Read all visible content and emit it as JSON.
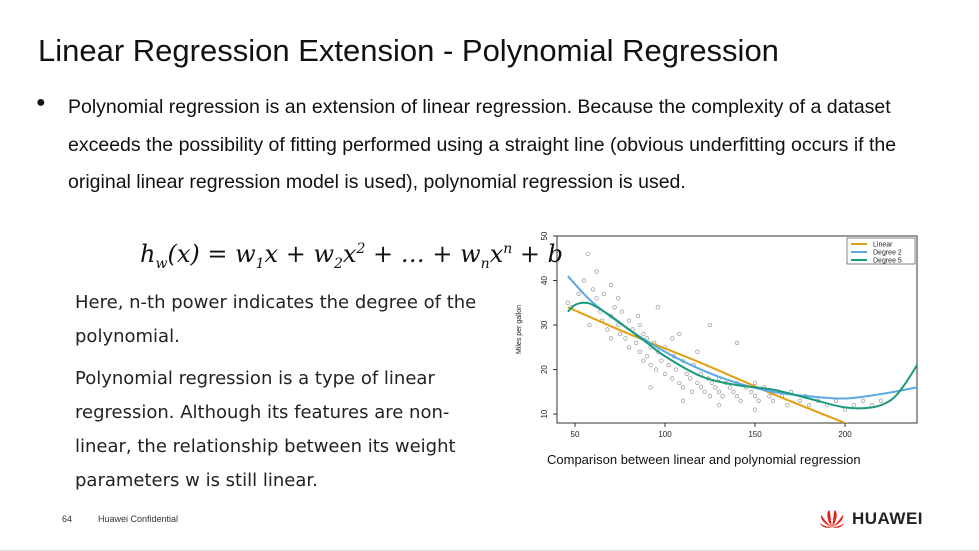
{
  "slide": {
    "title": "Linear Regression Extension - Polynomial Regression",
    "bullet": "Polynomial regression is an extension of linear regression. Because the complexity of a dataset exceeds the possibility of fitting performed using a straight line (obvious underfitting occurs if the original linear regression model is used), polynomial regression is used.",
    "formula": "h_w(x) = w_1 x + w_2 x^2 + ... + w_n x^n + b",
    "para1": "Here, n-th power indicates the degree of the polynomial.",
    "para2": "Polynomial regression is a type of linear regression. Although its features are non-linear, the relationship between its weight parameters w is still linear.",
    "caption": "Comparison between linear and polynomial regression",
    "footer_page": "64",
    "footer_confidential": "Huawei Confidential",
    "logo_text": "HUAWEI"
  },
  "colors": {
    "linear": "#e0a010",
    "degree2": "#5aa9e6",
    "degree5": "#1a9a7a",
    "points": "#888888",
    "logo_red": "#e2231a"
  },
  "chart_data": {
    "type": "scatter",
    "ylabel": "Miles per gallon",
    "xlabel": "",
    "xlim": [
      40,
      240
    ],
    "ylim": [
      8,
      50
    ],
    "x_ticks": [
      "50",
      "100",
      "150",
      "200"
    ],
    "y_ticks": [
      "10",
      "20",
      "30",
      "40",
      "50"
    ],
    "legend_position": "top-right",
    "series": [
      {
        "name": "Linear",
        "x": [
          46,
          80,
          120,
          160,
          200,
          230
        ],
        "y": [
          34,
          28,
          21.5,
          14.5,
          8,
          3
        ]
      },
      {
        "name": "Degree 2",
        "x": [
          46,
          60,
          80,
          100,
          120,
          140,
          160,
          180,
          200,
          220,
          240
        ],
        "y": [
          41,
          35,
          29,
          24,
          20,
          17,
          15,
          14,
          13.5,
          14.5,
          16
        ]
      },
      {
        "name": "Degree 5",
        "x": [
          46,
          50,
          55,
          60,
          70,
          80,
          90,
          100,
          120,
          140,
          160,
          180,
          200,
          215,
          225,
          232,
          240
        ],
        "y": [
          33,
          34.5,
          35,
          34.5,
          32,
          29,
          26,
          23,
          18.5,
          16.5,
          15.5,
          13.5,
          11.5,
          11.5,
          13,
          16,
          21
        ]
      }
    ],
    "points": [
      [
        46,
        35
      ],
      [
        48,
        34
      ],
      [
        52,
        37
      ],
      [
        55,
        40
      ],
      [
        58,
        30
      ],
      [
        60,
        38
      ],
      [
        62,
        36
      ],
      [
        64,
        33
      ],
      [
        65,
        31
      ],
      [
        66,
        37
      ],
      [
        68,
        29
      ],
      [
        70,
        32
      ],
      [
        70,
        39
      ],
      [
        72,
        34
      ],
      [
        74,
        30
      ],
      [
        75,
        28
      ],
      [
        76,
        33
      ],
      [
        78,
        27
      ],
      [
        80,
        31
      ],
      [
        80,
        25
      ],
      [
        82,
        29
      ],
      [
        84,
        26
      ],
      [
        85,
        32
      ],
      [
        86,
        24
      ],
      [
        88,
        28
      ],
      [
        88,
        22
      ],
      [
        90,
        27
      ],
      [
        90,
        23
      ],
      [
        92,
        25
      ],
      [
        92,
        21
      ],
      [
        94,
        26
      ],
      [
        95,
        20
      ],
      [
        96,
        24
      ],
      [
        98,
        22
      ],
      [
        100,
        19
      ],
      [
        100,
        25
      ],
      [
        102,
        21
      ],
      [
        104,
        18
      ],
      [
        105,
        23
      ],
      [
        106,
        20
      ],
      [
        108,
        17
      ],
      [
        110,
        22
      ],
      [
        110,
        16
      ],
      [
        112,
        19
      ],
      [
        114,
        18
      ],
      [
        115,
        15
      ],
      [
        116,
        21
      ],
      [
        118,
        17
      ],
      [
        120,
        16
      ],
      [
        120,
        19
      ],
      [
        122,
        15
      ],
      [
        124,
        18
      ],
      [
        125,
        14
      ],
      [
        126,
        17
      ],
      [
        128,
        16
      ],
      [
        130,
        15
      ],
      [
        130,
        18
      ],
      [
        132,
        14
      ],
      [
        134,
        17
      ],
      [
        136,
        16
      ],
      [
        138,
        15
      ],
      [
        140,
        14
      ],
      [
        140,
        17
      ],
      [
        142,
        13
      ],
      [
        145,
        16
      ],
      [
        148,
        15
      ],
      [
        150,
        14
      ],
      [
        150,
        17
      ],
      [
        152,
        13
      ],
      [
        155,
        16
      ],
      [
        158,
        14
      ],
      [
        160,
        15
      ],
      [
        160,
        13
      ],
      [
        165,
        14
      ],
      [
        168,
        12
      ],
      [
        170,
        15
      ],
      [
        175,
        13
      ],
      [
        178,
        14
      ],
      [
        180,
        12
      ],
      [
        185,
        13
      ],
      [
        190,
        12
      ],
      [
        195,
        13
      ],
      [
        200,
        11
      ],
      [
        205,
        12
      ],
      [
        210,
        13
      ],
      [
        215,
        12
      ],
      [
        220,
        13
      ],
      [
        62,
        42
      ],
      [
        57,
        46
      ],
      [
        96,
        34
      ],
      [
        108,
        28
      ],
      [
        125,
        30
      ],
      [
        140,
        26
      ],
      [
        86,
        30
      ],
      [
        74,
        36
      ],
      [
        92,
        16
      ],
      [
        110,
        13
      ],
      [
        130,
        12
      ],
      [
        150,
        11
      ],
      [
        70,
        27
      ],
      [
        104,
        27
      ],
      [
        118,
        24
      ]
    ]
  }
}
